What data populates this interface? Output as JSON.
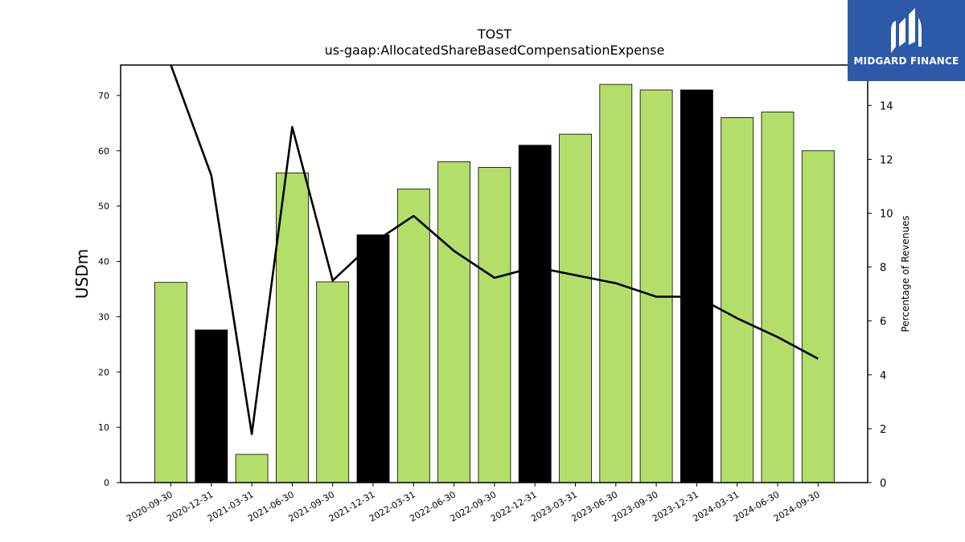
{
  "chart_data": {
    "type": "bar",
    "title": "TOST",
    "subtitle": "us-gaap:AllocatedShareBasedCompensationExpense",
    "ylabel": "USDm",
    "ylabel_right": "Percentage of Revenues",
    "ylim": [
      0,
      75.5
    ],
    "ylim_right": [
      0,
      15.5
    ],
    "yticks": [
      0,
      10,
      20,
      30,
      40,
      50,
      60,
      70
    ],
    "yticks_right": [
      0,
      2,
      4,
      6,
      8,
      10,
      12,
      14
    ],
    "categories": [
      "2020-09-30",
      "2020-12-31",
      "2021-03-31",
      "2021-06-30",
      "2021-09-30",
      "2021-12-31",
      "2022-03-31",
      "2022-06-30",
      "2022-09-30",
      "2022-12-31",
      "2023-03-31",
      "2023-06-30",
      "2023-09-30",
      "2023-12-31",
      "2024-03-31",
      "2024-06-30",
      "2024-09-30"
    ],
    "series": [
      {
        "type": "bar",
        "axis": "left",
        "values": [
          36.2,
          27.6,
          5.1,
          56.0,
          36.3,
          44.8,
          53.1,
          58.0,
          57.0,
          61.0,
          63.0,
          72.0,
          71.0,
          71.0,
          66.0,
          67.0,
          60.0
        ],
        "colors": [
          "#b3de69",
          "#000000",
          "#b3de69",
          "#b3de69",
          "#b3de69",
          "#000000",
          "#b3de69",
          "#b3de69",
          "#b3de69",
          "#000000",
          "#b3de69",
          "#b3de69",
          "#b3de69",
          "#000000",
          "#b3de69",
          "#b3de69",
          "#b3de69"
        ]
      },
      {
        "type": "line",
        "axis": "right",
        "values": [
          15.5,
          11.4,
          1.8,
          13.2,
          7.5,
          8.9,
          9.9,
          8.6,
          7.6,
          8.0,
          7.7,
          7.4,
          6.9,
          6.9,
          6.1,
          5.4,
          4.6
        ],
        "color": "#000000"
      }
    ],
    "grid": false,
    "legend": "none"
  },
  "logo": {
    "text": "MIDGARD FINANCE",
    "background": "#2d5aa8"
  }
}
